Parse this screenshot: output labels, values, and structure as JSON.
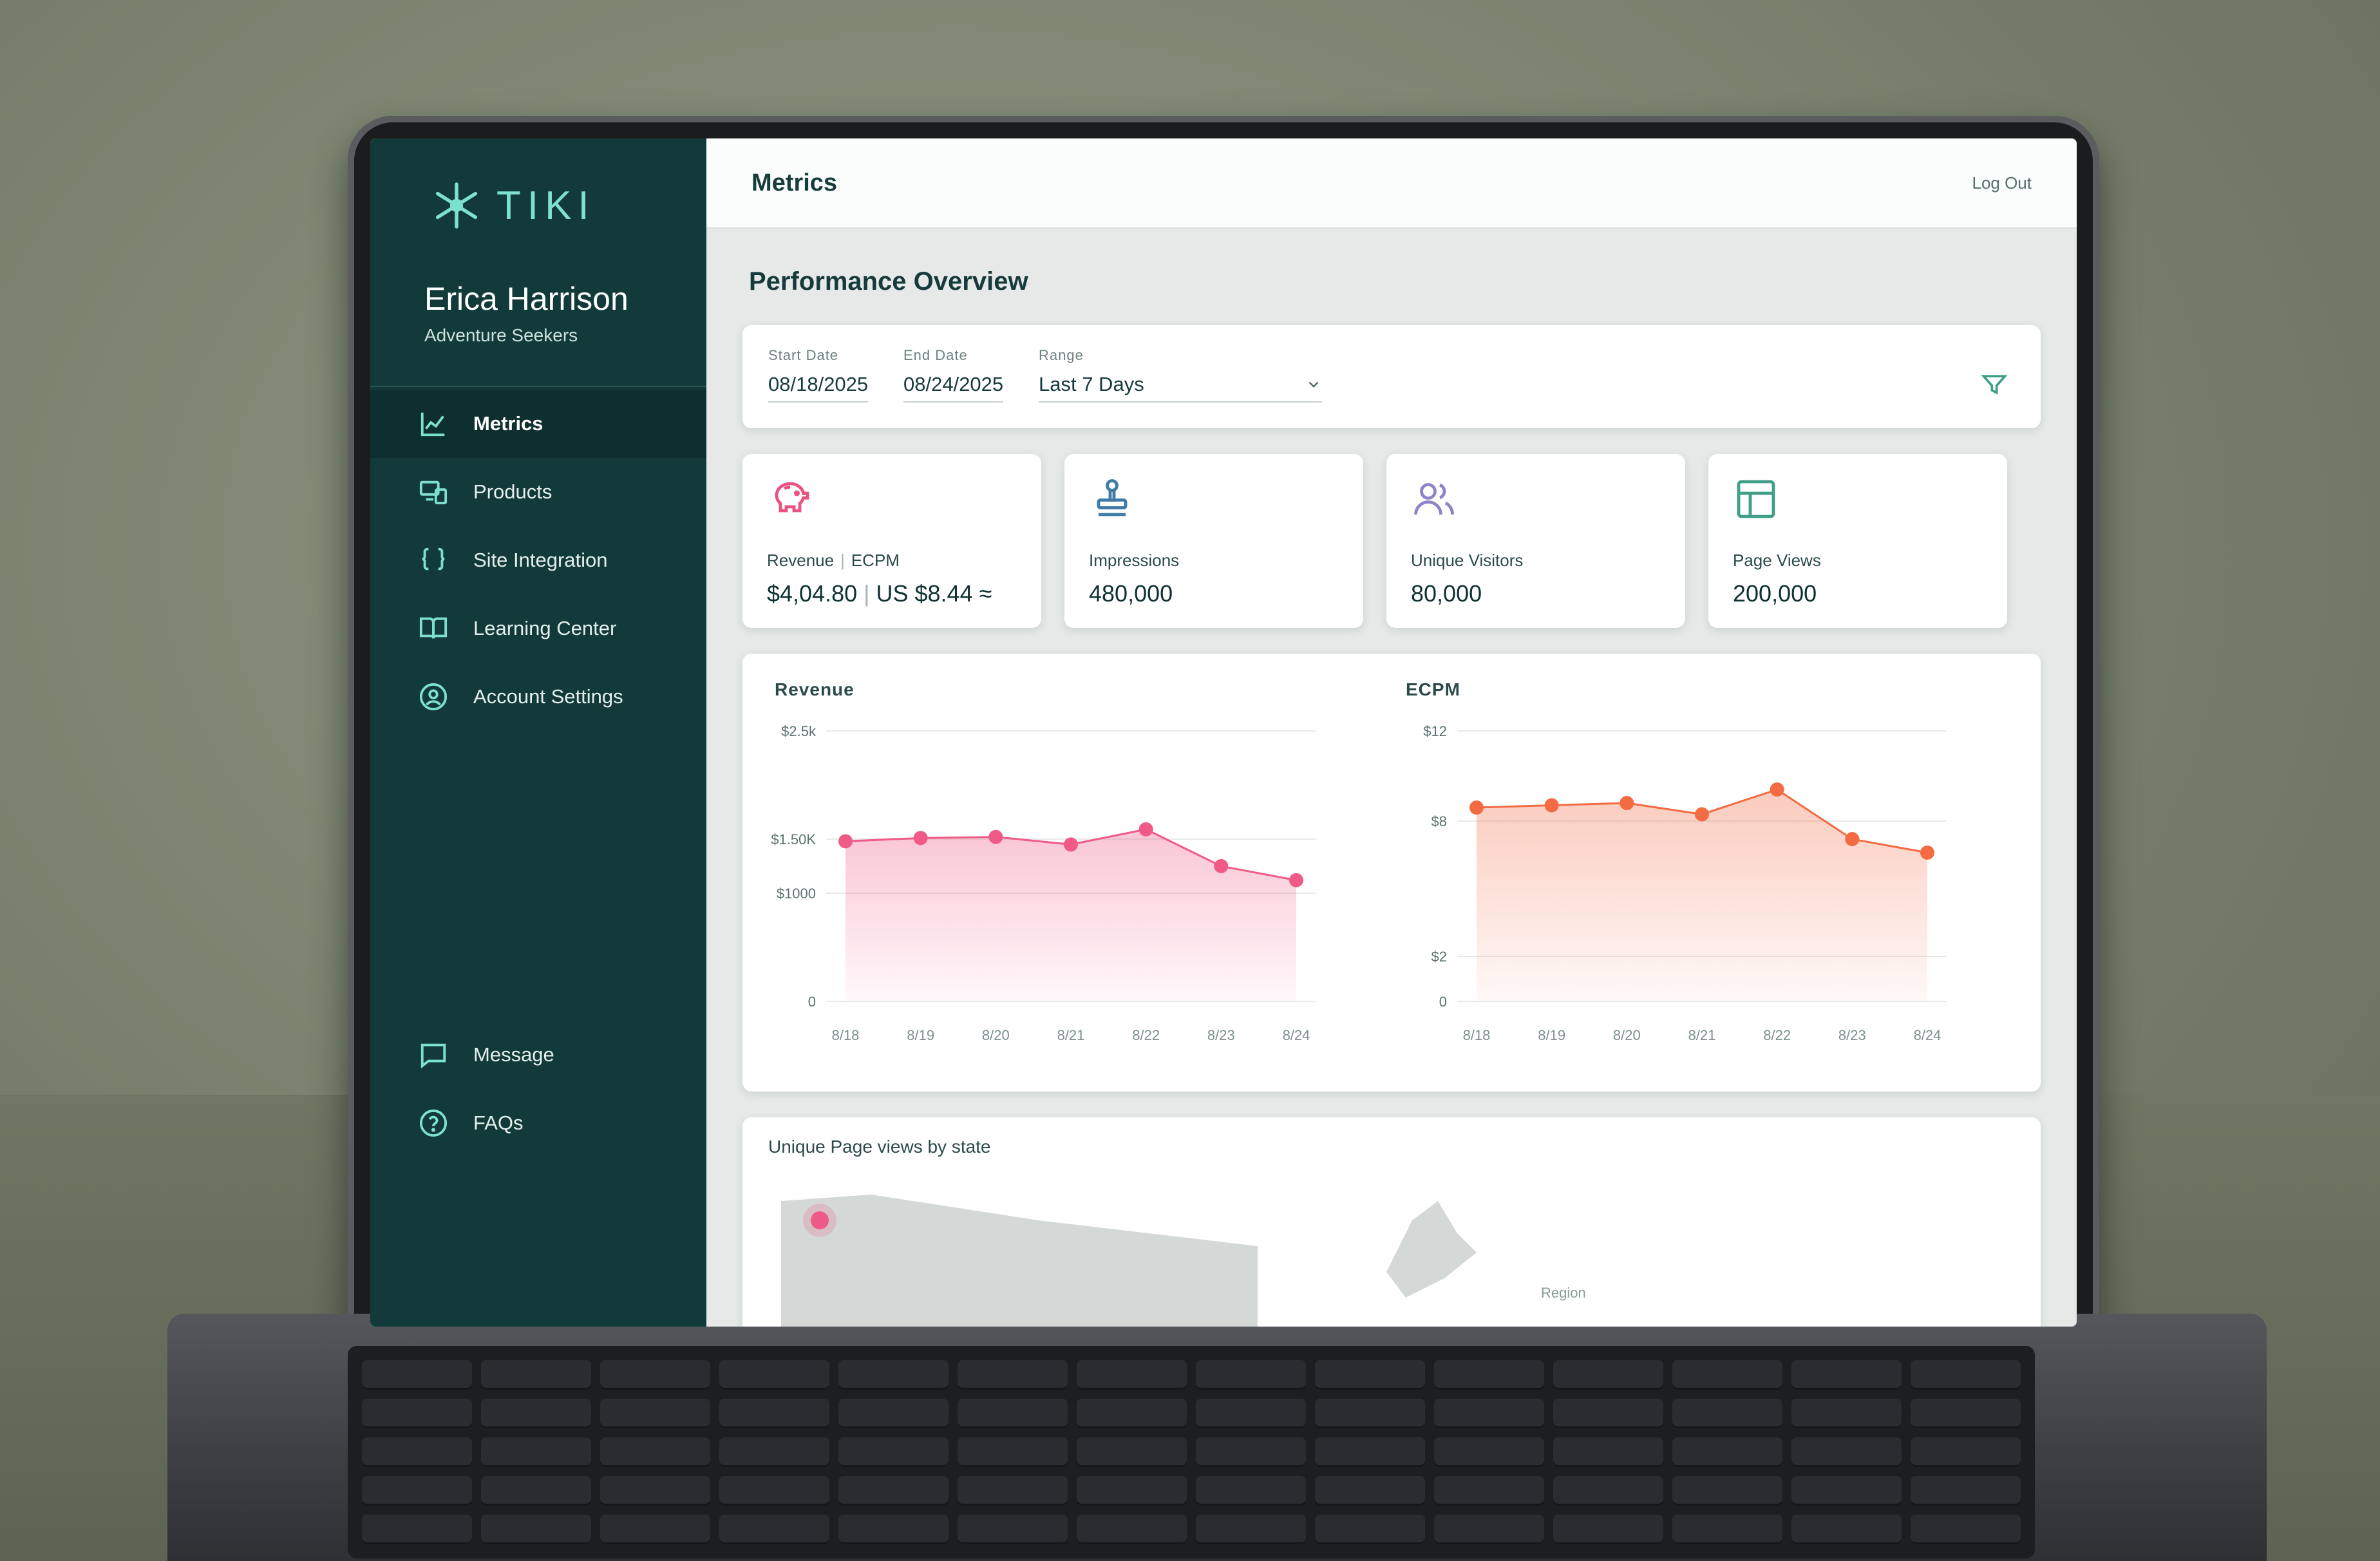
{
  "app": {
    "name": "TIKI",
    "page_title": "Metrics",
    "logout_label": "Log Out"
  },
  "user": {
    "name": "Erica Harrison",
    "org": "Adventure Seekers"
  },
  "sidebar": {
    "items": [
      {
        "label": "Metrics",
        "icon": "chart-line-icon",
        "active": true
      },
      {
        "label": "Products",
        "icon": "devices-icon"
      },
      {
        "label": "Site Integration",
        "icon": "braces-icon"
      },
      {
        "label": "Learning Center",
        "icon": "book-icon"
      },
      {
        "label": "Account Settings",
        "icon": "user-circle-icon"
      }
    ],
    "bottom_items": [
      {
        "label": "Message",
        "icon": "message-icon"
      },
      {
        "label": "FAQs",
        "icon": "help-circle-icon"
      }
    ]
  },
  "main": {
    "section_title": "Performance Overview",
    "filters": {
      "start_label": "Start Date",
      "start_value": "08/18/2025",
      "end_label": "End Date",
      "end_value": "08/24/2025",
      "range_label": "Range",
      "range_value": "Last 7 Days"
    },
    "stats": [
      {
        "label": "Revenue",
        "label2": "ECPM",
        "value": "$4,04.80",
        "value2": "US $8.44 ≈",
        "icon": "piggy-bank-icon",
        "color": "#e9537f"
      },
      {
        "label": "Impressions",
        "value": "480,000",
        "icon": "stamp-icon",
        "color": "#3e7ba6"
      },
      {
        "label": "Unique Visitors",
        "value": "80,000",
        "icon": "users-icon",
        "color": "#8f83c9"
      },
      {
        "label": "Page Views",
        "value": "200,000",
        "icon": "layout-icon",
        "color": "#3e9f86"
      }
    ],
    "map_title": "Unique Page views by state",
    "map_label": "Region"
  },
  "chart_data": [
    {
      "type": "area",
      "title": "Revenue",
      "categories": [
        "8/18",
        "8/19",
        "8/20",
        "8/21",
        "8/22",
        "8/23",
        "8/24"
      ],
      "ytick_labels": [
        "0",
        "$1000",
        "$1.50K",
        "$2.5k"
      ],
      "ytick_values": [
        0,
        1000,
        1500,
        2500
      ],
      "ylim": [
        0,
        2500
      ],
      "series": [
        {
          "values": [
            1480,
            1510,
            1520,
            1450,
            1590,
            1250,
            1120
          ],
          "color": "#ef5a86"
        }
      ]
    },
    {
      "type": "area",
      "title": "ECPM",
      "categories": [
        "8/18",
        "8/19",
        "8/20",
        "8/21",
        "8/22",
        "8/23",
        "8/24"
      ],
      "ytick_labels": [
        "0",
        "$2",
        "$8",
        "$12"
      ],
      "ytick_values": [
        0,
        2,
        8,
        12
      ],
      "ylim": [
        0,
        12
      ],
      "series": [
        {
          "values": [
            8.6,
            8.7,
            8.8,
            8.3,
            9.4,
            7.2,
            6.6
          ],
          "color": "#f26b43"
        }
      ]
    }
  ]
}
